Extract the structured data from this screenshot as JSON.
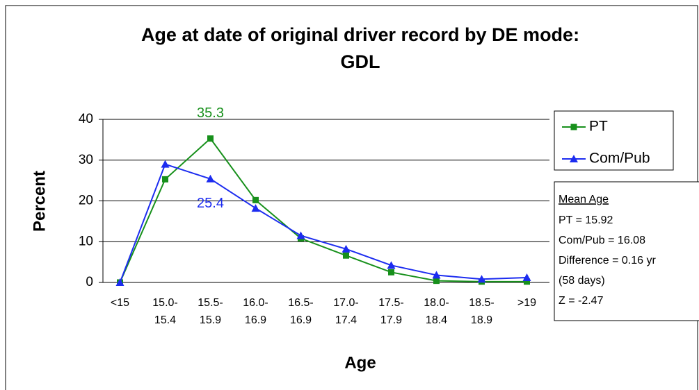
{
  "chart_data": {
    "type": "line",
    "title": [
      "Age at date of original driver record by DE mode:",
      "GDL"
    ],
    "x_label": "Age",
    "y_label": "Percent",
    "categories": [
      [
        "<15"
      ],
      [
        "15.0-",
        "15.4"
      ],
      [
        "15.5-",
        "15.9"
      ],
      [
        "16.0-",
        "16.9"
      ],
      [
        "16.5-",
        "16.9"
      ],
      [
        "17.0-",
        "17.4"
      ],
      [
        "17.5-",
        "17.9"
      ],
      [
        "18.0-",
        "18.4"
      ],
      [
        "18.5-",
        "18.9"
      ],
      [
        ">19"
      ]
    ],
    "series": [
      {
        "name": "PT",
        "color": "#17901b",
        "marker": "square",
        "label_index": 2,
        "values": [
          0,
          25.3,
          35.3,
          20.2,
          10.8,
          6.6,
          2.5,
          0.4,
          0.2,
          0.2
        ]
      },
      {
        "name": "Com/Pub",
        "color": "#1c2cf0",
        "marker": "triangle",
        "label_index": 2,
        "values": [
          0,
          29.0,
          25.4,
          18.2,
          11.5,
          8.2,
          4.2,
          1.8,
          0.8,
          1.2
        ]
      }
    ],
    "ylim": [
      0,
      40
    ],
    "yticks": [
      0,
      10,
      20,
      30,
      40
    ],
    "grid": true,
    "legend": "right",
    "stats_box": {
      "title": "Mean Age",
      "lines": [
        "PT = 15.92",
        "Com/Pub = 16.08",
        "Difference = 0.16 yr",
        "(58 days)",
        "Z = -2.47"
      ]
    }
  }
}
